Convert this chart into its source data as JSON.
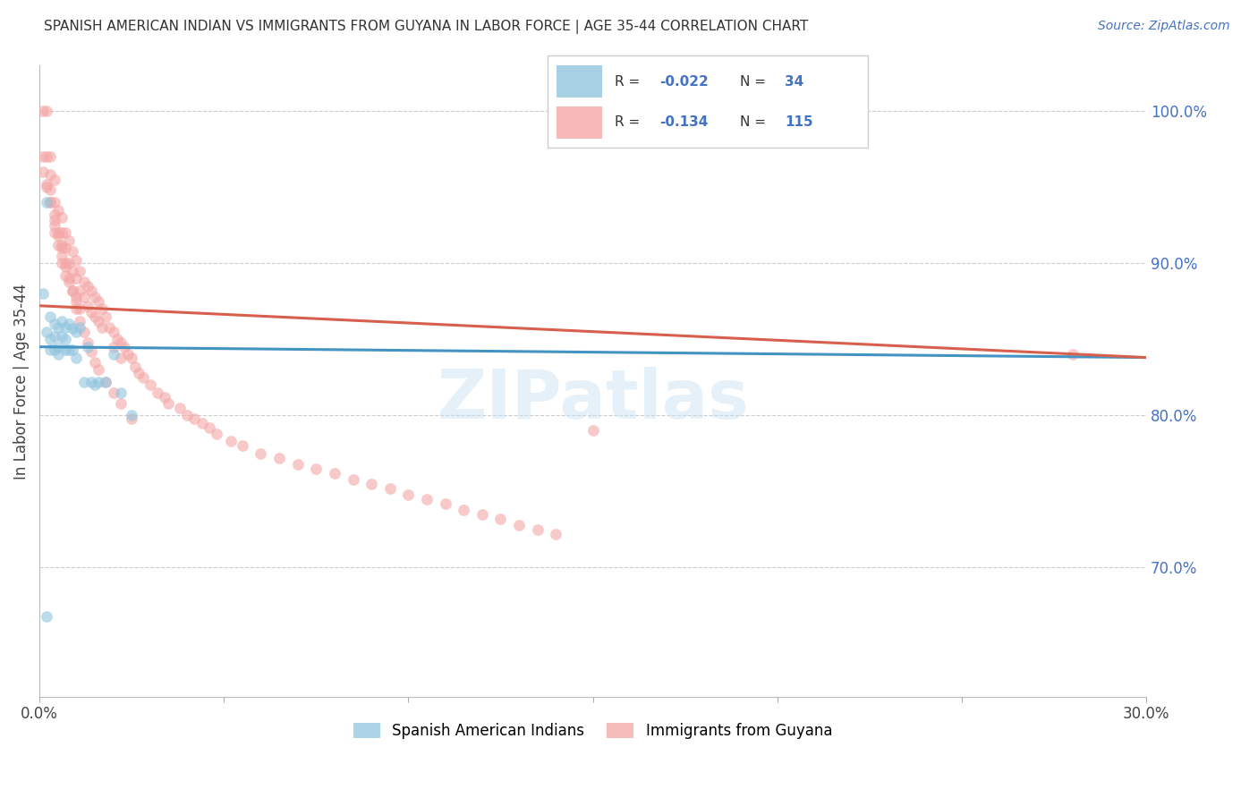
{
  "title": "SPANISH AMERICAN INDIAN VS IMMIGRANTS FROM GUYANA IN LABOR FORCE | AGE 35-44 CORRELATION CHART",
  "source": "Source: ZipAtlas.com",
  "ylabel": "In Labor Force | Age 35-44",
  "xlim": [
    0.0,
    0.3
  ],
  "ylim": [
    0.615,
    1.03
  ],
  "xticks": [
    0.0,
    0.05,
    0.1,
    0.15,
    0.2,
    0.25,
    0.3
  ],
  "right_yticks": [
    0.7,
    0.8,
    0.9,
    1.0
  ],
  "right_yticklabels": [
    "70.0%",
    "80.0%",
    "90.0%",
    "100.0%"
  ],
  "watermark": "ZIPatlas",
  "blue_color": "#92c5de",
  "pink_color": "#f4a6a6",
  "blue_line_color": "#4393c3",
  "pink_line_color": "#d6604d",
  "scatter_alpha": 0.6,
  "marker_size": 85,
  "blue_points_x": [
    0.001,
    0.002,
    0.002,
    0.003,
    0.003,
    0.003,
    0.004,
    0.004,
    0.004,
    0.005,
    0.005,
    0.005,
    0.006,
    0.006,
    0.007,
    0.007,
    0.007,
    0.008,
    0.008,
    0.009,
    0.009,
    0.01,
    0.01,
    0.011,
    0.012,
    0.013,
    0.014,
    0.015,
    0.016,
    0.018,
    0.02,
    0.022,
    0.025,
    0.002
  ],
  "blue_points_y": [
    0.88,
    0.94,
    0.855,
    0.865,
    0.85,
    0.843,
    0.86,
    0.852,
    0.843,
    0.858,
    0.845,
    0.84,
    0.862,
    0.852,
    0.858,
    0.85,
    0.843,
    0.86,
    0.843,
    0.857,
    0.843,
    0.855,
    0.838,
    0.858,
    0.822,
    0.845,
    0.822,
    0.82,
    0.822,
    0.822,
    0.84,
    0.815,
    0.8,
    0.668
  ],
  "pink_points_x": [
    0.001,
    0.001,
    0.002,
    0.002,
    0.002,
    0.003,
    0.003,
    0.003,
    0.003,
    0.004,
    0.004,
    0.004,
    0.004,
    0.005,
    0.005,
    0.005,
    0.006,
    0.006,
    0.006,
    0.006,
    0.007,
    0.007,
    0.007,
    0.007,
    0.008,
    0.008,
    0.008,
    0.009,
    0.009,
    0.009,
    0.01,
    0.01,
    0.01,
    0.011,
    0.011,
    0.011,
    0.012,
    0.012,
    0.013,
    0.013,
    0.014,
    0.014,
    0.015,
    0.015,
    0.016,
    0.016,
    0.017,
    0.017,
    0.018,
    0.019,
    0.02,
    0.02,
    0.021,
    0.022,
    0.022,
    0.023,
    0.024,
    0.025,
    0.026,
    0.027,
    0.028,
    0.03,
    0.032,
    0.034,
    0.035,
    0.038,
    0.04,
    0.042,
    0.044,
    0.046,
    0.048,
    0.052,
    0.055,
    0.06,
    0.065,
    0.07,
    0.075,
    0.08,
    0.085,
    0.09,
    0.095,
    0.1,
    0.105,
    0.11,
    0.115,
    0.12,
    0.125,
    0.13,
    0.135,
    0.14,
    0.001,
    0.002,
    0.003,
    0.004,
    0.004,
    0.005,
    0.006,
    0.006,
    0.007,
    0.008,
    0.009,
    0.01,
    0.01,
    0.011,
    0.012,
    0.013,
    0.014,
    0.015,
    0.016,
    0.018,
    0.02,
    0.022,
    0.025,
    0.28,
    0.15
  ],
  "pink_points_y": [
    1.0,
    0.97,
    1.0,
    0.97,
    0.952,
    0.97,
    0.958,
    0.948,
    0.94,
    0.955,
    0.94,
    0.928,
    0.92,
    0.935,
    0.92,
    0.912,
    0.93,
    0.92,
    0.91,
    0.9,
    0.92,
    0.91,
    0.9,
    0.892,
    0.915,
    0.9,
    0.888,
    0.908,
    0.895,
    0.882,
    0.902,
    0.89,
    0.878,
    0.895,
    0.882,
    0.87,
    0.888,
    0.878,
    0.885,
    0.872,
    0.882,
    0.868,
    0.878,
    0.865,
    0.875,
    0.862,
    0.87,
    0.858,
    0.865,
    0.858,
    0.855,
    0.845,
    0.85,
    0.848,
    0.838,
    0.845,
    0.84,
    0.838,
    0.832,
    0.828,
    0.825,
    0.82,
    0.815,
    0.812,
    0.808,
    0.805,
    0.8,
    0.798,
    0.795,
    0.792,
    0.788,
    0.783,
    0.78,
    0.775,
    0.772,
    0.768,
    0.765,
    0.762,
    0.758,
    0.755,
    0.752,
    0.748,
    0.745,
    0.742,
    0.738,
    0.735,
    0.732,
    0.728,
    0.725,
    0.722,
    0.96,
    0.95,
    0.94,
    0.932,
    0.925,
    0.918,
    0.912,
    0.905,
    0.898,
    0.89,
    0.882,
    0.875,
    0.87,
    0.862,
    0.855,
    0.848,
    0.842,
    0.835,
    0.83,
    0.822,
    0.815,
    0.808,
    0.798,
    0.84,
    0.79
  ],
  "blue_trend_x": [
    0.0,
    0.3
  ],
  "blue_trend_y": [
    0.845,
    0.838
  ],
  "pink_trend_x": [
    0.0,
    0.3
  ],
  "pink_trend_y": [
    0.872,
    0.838
  ]
}
